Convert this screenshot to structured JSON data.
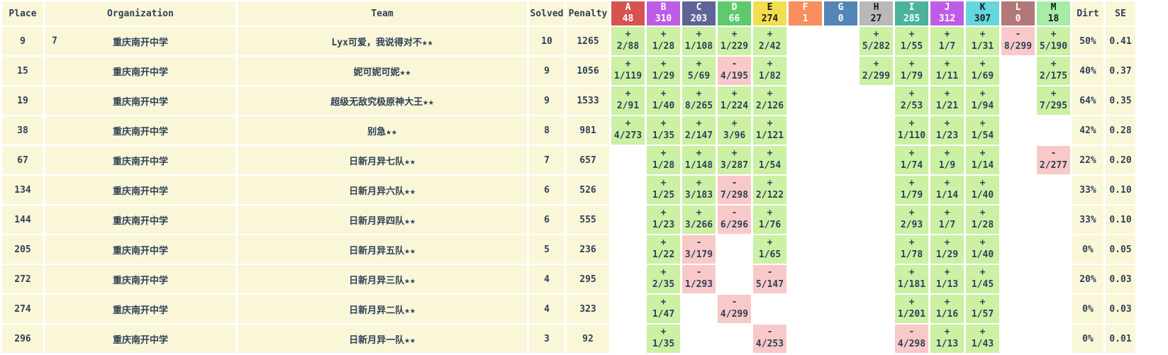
{
  "columns": {
    "place": "Place",
    "organization": "Organization",
    "team": "Team",
    "solved": "Solved",
    "penalty": "Penalty",
    "dirt": "Dirt",
    "se": "SE"
  },
  "colors": {
    "row_bg": "#faf6d8",
    "solved_cell": "#ccf0a4",
    "failed_cell": "#f8c9c8",
    "text": "#2e4156",
    "page_bg": "#ffffff"
  },
  "problems": [
    {
      "letter": "A",
      "count": "48",
      "color": "#d6534e",
      "text_color": "#ffffff"
    },
    {
      "letter": "B",
      "count": "310",
      "color": "#bf5ce6",
      "text_color": "#ffffff"
    },
    {
      "letter": "C",
      "count": "203",
      "color": "#5e6596",
      "text_color": "#ffffff"
    },
    {
      "letter": "D",
      "count": "66",
      "color": "#5fc96d",
      "text_color": "#ffffff"
    },
    {
      "letter": "E",
      "count": "274",
      "color": "#f2de4f",
      "text_color": "#1c1c1c"
    },
    {
      "letter": "F",
      "count": "1",
      "color": "#f88e5e",
      "text_color": "#ffffff"
    },
    {
      "letter": "G",
      "count": "0",
      "color": "#5486b5",
      "text_color": "#ffffff"
    },
    {
      "letter": "H",
      "count": "27",
      "color": "#b9b9b9",
      "text_color": "#1c1c1c"
    },
    {
      "letter": "I",
      "count": "285",
      "color": "#4bb39b",
      "text_color": "#ffffff"
    },
    {
      "letter": "J",
      "count": "312",
      "color": "#bf5ce6",
      "text_color": "#ffffff"
    },
    {
      "letter": "K",
      "count": "307",
      "color": "#64d6de",
      "text_color": "#1c1c1c"
    },
    {
      "letter": "L",
      "count": "0",
      "color": "#b27878",
      "text_color": "#ffffff"
    },
    {
      "letter": "M",
      "count": "18",
      "color": "#a7eda7",
      "text_color": "#1c1c1c"
    }
  ],
  "rows": [
    {
      "place": "9",
      "org_rank": "7",
      "organization": "重庆南开中学",
      "team": "Lyx可爱，我说得对不★★",
      "solved": "10",
      "penalty": "1265",
      "cells": [
        {
          "sign": "+",
          "tries": "2/88"
        },
        {
          "sign": "+",
          "tries": "1/28"
        },
        {
          "sign": "+",
          "tries": "1/108"
        },
        {
          "sign": "+",
          "tries": "1/229"
        },
        {
          "sign": "+",
          "tries": "2/42"
        },
        null,
        null,
        {
          "sign": "+",
          "tries": "5/282"
        },
        {
          "sign": "+",
          "tries": "1/55"
        },
        {
          "sign": "+",
          "tries": "1/7"
        },
        {
          "sign": "+",
          "tries": "1/31"
        },
        {
          "sign": "-",
          "tries": "8/299"
        },
        {
          "sign": "+",
          "tries": "5/190"
        }
      ],
      "dirt": "50%",
      "se": "0.41"
    },
    {
      "place": "15",
      "org_rank": "",
      "organization": "重庆南开中学",
      "team": "妮可妮可妮★★",
      "solved": "9",
      "penalty": "1056",
      "cells": [
        {
          "sign": "+",
          "tries": "1/119"
        },
        {
          "sign": "+",
          "tries": "1/29"
        },
        {
          "sign": "+",
          "tries": "5/69"
        },
        {
          "sign": "-",
          "tries": "4/195"
        },
        {
          "sign": "+",
          "tries": "1/82"
        },
        null,
        null,
        {
          "sign": "+",
          "tries": "2/299"
        },
        {
          "sign": "+",
          "tries": "1/79"
        },
        {
          "sign": "+",
          "tries": "1/11"
        },
        {
          "sign": "+",
          "tries": "1/69"
        },
        null,
        {
          "sign": "+",
          "tries": "2/175"
        }
      ],
      "dirt": "40%",
      "se": "0.37"
    },
    {
      "place": "19",
      "org_rank": "",
      "organization": "重庆南开中学",
      "team": "超级无敌究极原神大王★★",
      "solved": "9",
      "penalty": "1533",
      "cells": [
        {
          "sign": "+",
          "tries": "2/91"
        },
        {
          "sign": "+",
          "tries": "1/40"
        },
        {
          "sign": "+",
          "tries": "8/265"
        },
        {
          "sign": "+",
          "tries": "1/224"
        },
        {
          "sign": "+",
          "tries": "2/126"
        },
        null,
        null,
        null,
        {
          "sign": "+",
          "tries": "2/53"
        },
        {
          "sign": "+",
          "tries": "1/21"
        },
        {
          "sign": "+",
          "tries": "1/94"
        },
        null,
        {
          "sign": "+",
          "tries": "7/295"
        }
      ],
      "dirt": "64%",
      "se": "0.35"
    },
    {
      "place": "38",
      "org_rank": "",
      "organization": "重庆南开中学",
      "team": "别急★★",
      "solved": "8",
      "penalty": "981",
      "cells": [
        {
          "sign": "+",
          "tries": "4/273"
        },
        {
          "sign": "+",
          "tries": "1/35"
        },
        {
          "sign": "+",
          "tries": "2/147"
        },
        {
          "sign": "+",
          "tries": "3/96"
        },
        {
          "sign": "+",
          "tries": "1/121"
        },
        null,
        null,
        null,
        {
          "sign": "+",
          "tries": "1/110"
        },
        {
          "sign": "+",
          "tries": "1/23"
        },
        {
          "sign": "+",
          "tries": "1/54"
        },
        null,
        null
      ],
      "dirt": "42%",
      "se": "0.28"
    },
    {
      "place": "67",
      "org_rank": "",
      "organization": "重庆南开中学",
      "team": "日新月异七队★★",
      "solved": "7",
      "penalty": "657",
      "cells": [
        null,
        {
          "sign": "+",
          "tries": "1/28"
        },
        {
          "sign": "+",
          "tries": "1/148"
        },
        {
          "sign": "+",
          "tries": "3/287"
        },
        {
          "sign": "+",
          "tries": "1/54"
        },
        null,
        null,
        null,
        {
          "sign": "+",
          "tries": "1/74"
        },
        {
          "sign": "+",
          "tries": "1/9"
        },
        {
          "sign": "+",
          "tries": "1/14"
        },
        null,
        {
          "sign": "-",
          "tries": "2/277"
        }
      ],
      "dirt": "22%",
      "se": "0.20"
    },
    {
      "place": "134",
      "org_rank": "",
      "organization": "重庆南开中学",
      "team": "日新月异六队★★",
      "solved": "6",
      "penalty": "526",
      "cells": [
        null,
        {
          "sign": "+",
          "tries": "1/25"
        },
        {
          "sign": "+",
          "tries": "3/183"
        },
        {
          "sign": "-",
          "tries": "7/298"
        },
        {
          "sign": "+",
          "tries": "2/122"
        },
        null,
        null,
        null,
        {
          "sign": "+",
          "tries": "1/79"
        },
        {
          "sign": "+",
          "tries": "1/14"
        },
        {
          "sign": "+",
          "tries": "1/40"
        },
        null,
        null
      ],
      "dirt": "33%",
      "se": "0.10"
    },
    {
      "place": "144",
      "org_rank": "",
      "organization": "重庆南开中学",
      "team": "日新月异四队★★",
      "solved": "6",
      "penalty": "555",
      "cells": [
        null,
        {
          "sign": "+",
          "tries": "1/23"
        },
        {
          "sign": "+",
          "tries": "3/266"
        },
        {
          "sign": "-",
          "tries": "6/296"
        },
        {
          "sign": "+",
          "tries": "1/76"
        },
        null,
        null,
        null,
        {
          "sign": "+",
          "tries": "2/93"
        },
        {
          "sign": "+",
          "tries": "1/7"
        },
        {
          "sign": "+",
          "tries": "1/28"
        },
        null,
        null
      ],
      "dirt": "33%",
      "se": "0.10"
    },
    {
      "place": "205",
      "org_rank": "",
      "organization": "重庆南开中学",
      "team": "日新月异五队★★",
      "solved": "5",
      "penalty": "236",
      "cells": [
        null,
        {
          "sign": "+",
          "tries": "1/22"
        },
        {
          "sign": "-",
          "tries": "3/179"
        },
        null,
        {
          "sign": "+",
          "tries": "1/65"
        },
        null,
        null,
        null,
        {
          "sign": "+",
          "tries": "1/78"
        },
        {
          "sign": "+",
          "tries": "1/29"
        },
        {
          "sign": "+",
          "tries": "1/40"
        },
        null,
        null
      ],
      "dirt": "0%",
      "se": "0.05"
    },
    {
      "place": "272",
      "org_rank": "",
      "organization": "重庆南开中学",
      "team": "日新月异三队★★",
      "solved": "4",
      "penalty": "295",
      "cells": [
        null,
        {
          "sign": "+",
          "tries": "2/35"
        },
        {
          "sign": "-",
          "tries": "1/293"
        },
        null,
        {
          "sign": "-",
          "tries": "5/147"
        },
        null,
        null,
        null,
        {
          "sign": "+",
          "tries": "1/181"
        },
        {
          "sign": "+",
          "tries": "1/13"
        },
        {
          "sign": "+",
          "tries": "1/45"
        },
        null,
        null
      ],
      "dirt": "20%",
      "se": "0.03"
    },
    {
      "place": "274",
      "org_rank": "",
      "organization": "重庆南开中学",
      "team": "日新月异二队★★",
      "solved": "4",
      "penalty": "323",
      "cells": [
        null,
        {
          "sign": "+",
          "tries": "1/47"
        },
        null,
        {
          "sign": "-",
          "tries": "4/299"
        },
        null,
        null,
        null,
        null,
        {
          "sign": "+",
          "tries": "1/201"
        },
        {
          "sign": "+",
          "tries": "1/16"
        },
        {
          "sign": "+",
          "tries": "1/57"
        },
        null,
        null
      ],
      "dirt": "0%",
      "se": "0.03"
    },
    {
      "place": "296",
      "org_rank": "",
      "organization": "重庆南开中学",
      "team": "日新月异一队★★",
      "solved": "3",
      "penalty": "92",
      "cells": [
        null,
        {
          "sign": "+",
          "tries": "1/35"
        },
        null,
        null,
        {
          "sign": "-",
          "tries": "4/253"
        },
        null,
        null,
        null,
        {
          "sign": "-",
          "tries": "4/298"
        },
        {
          "sign": "+",
          "tries": "1/13"
        },
        {
          "sign": "+",
          "tries": "1/43"
        },
        null,
        null
      ],
      "dirt": "0%",
      "se": "0.01"
    }
  ]
}
